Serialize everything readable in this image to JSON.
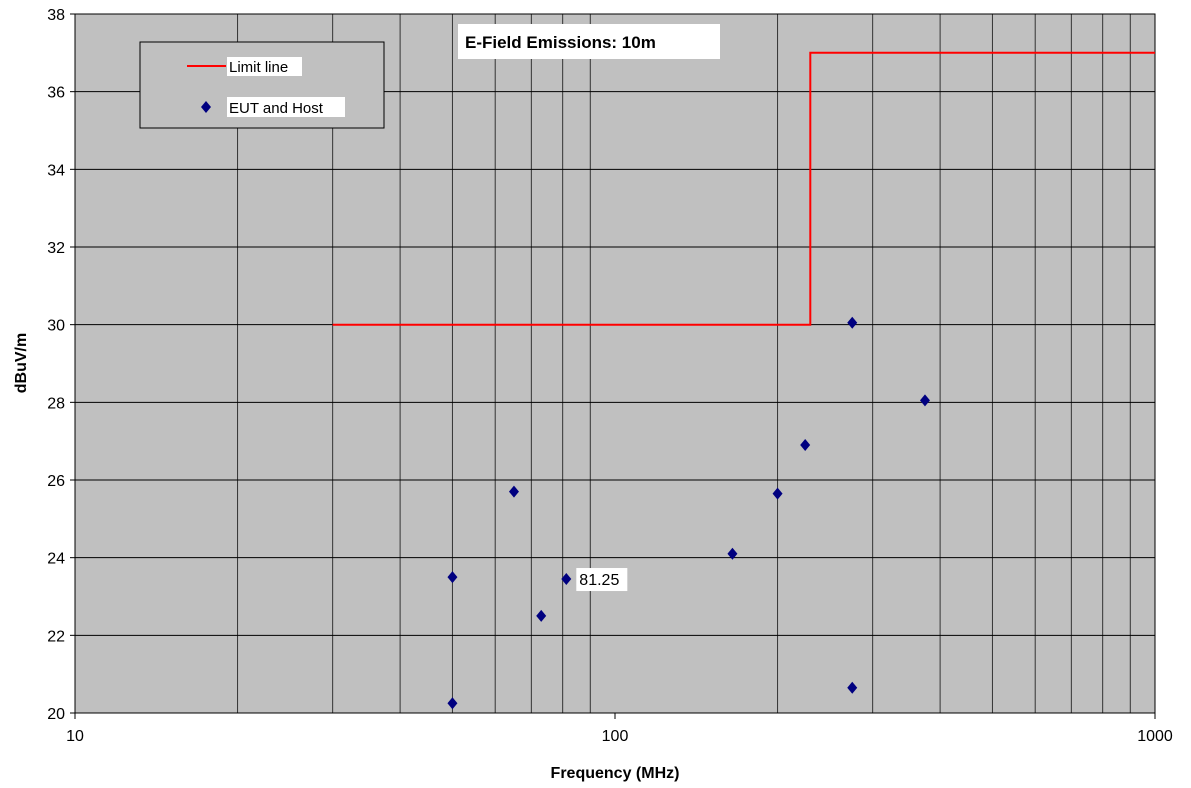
{
  "chart_data": {
    "type": "scatter",
    "title": "E-Field Emissions:  10m",
    "xlabel": "Frequency (MHz)",
    "ylabel": "dBuV/m",
    "xscale": "log",
    "xlim": [
      10,
      1000
    ],
    "ylim": [
      20,
      38
    ],
    "x_tick_labels": [
      "10",
      "100",
      "1000"
    ],
    "y_tick_labels": [
      "20",
      "22",
      "24",
      "26",
      "28",
      "30",
      "32",
      "34",
      "36",
      "38"
    ],
    "grid": true,
    "legend": {
      "placement": "top-left",
      "entries": [
        "Limit line",
        "EUT and Host"
      ]
    },
    "series": [
      {
        "name": "Limit line",
        "kind": "step-line",
        "color": "#ff0000",
        "points": [
          [
            30,
            30
          ],
          [
            230,
            30
          ],
          [
            230,
            37
          ],
          [
            1000,
            37
          ]
        ]
      },
      {
        "name": "EUT and Host",
        "kind": "markers",
        "marker": "diamond",
        "color": "#000080",
        "points": [
          [
            50,
            20.25
          ],
          [
            50,
            23.5
          ],
          [
            65,
            25.7
          ],
          [
            73,
            22.5
          ],
          [
            81.25,
            23.45
          ],
          [
            165,
            24.1
          ],
          [
            200,
            25.65
          ],
          [
            225,
            26.9
          ],
          [
            275,
            30.05
          ],
          [
            275,
            20.65
          ],
          [
            375,
            28.05
          ]
        ]
      }
    ],
    "annotations": [
      {
        "text": "81.25",
        "x": 81.25,
        "y": 23.45
      }
    ],
    "colors": {
      "plot_background": "#c0c0c0",
      "grid": "#000000",
      "limit_line": "#ff0000",
      "markers": "#000080"
    }
  }
}
